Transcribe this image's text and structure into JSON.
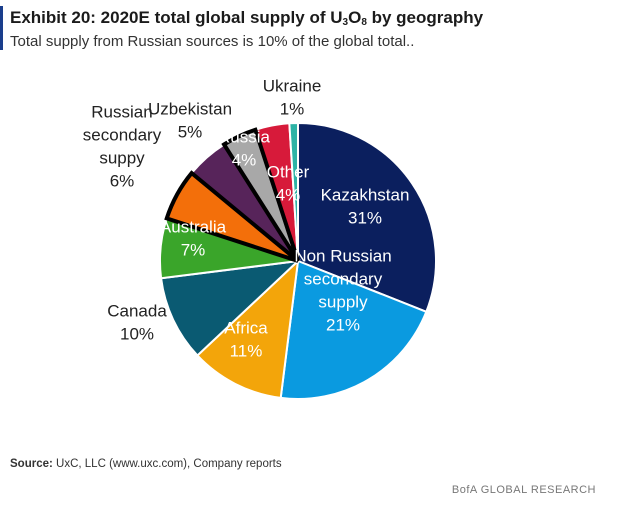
{
  "header": {
    "title_main": "Exhibit 20: 2020E total global supply of U",
    "title_sub1": "3",
    "title_mid": "O",
    "title_sub2": "8",
    "title_end": " by geography",
    "subtitle": "Total supply from Russian sources is 10% of the global total.."
  },
  "footer": {
    "source_label": "Source:",
    "source_text": " UxC, LLC (www.uxc.com), Company reports",
    "brand": "BofA GLOBAL RESEARCH"
  },
  "colors": {
    "kazakhstan": "#0b1f5e",
    "non_russian_secondary": "#0a9ae0",
    "africa": "#f3a50a",
    "canada": "#0a5a72",
    "australia": "#3aa52a",
    "russian_secondary": "#f36f0a",
    "uzbekistan": "#57245a",
    "russia": "#a8a8a8",
    "other": "#d71a3a",
    "ukraine": "#2db3a6"
  },
  "chart_data": {
    "type": "pie",
    "title": "Exhibit 20: 2020E total global supply of U3O8 by geography",
    "slices": [
      {
        "label": "Kazakhstan",
        "value_label": "31%",
        "value": 31
      },
      {
        "label": "Non Russian secondary supply",
        "value_label": "21%",
        "value": 21
      },
      {
        "label": "Africa",
        "value_label": "11%",
        "value": 11
      },
      {
        "label": "Canada",
        "value_label": "10%",
        "value": 10
      },
      {
        "label": "Australia",
        "value_label": "7%",
        "value": 7
      },
      {
        "label": "Russian secondary suppy",
        "value_label": "6%",
        "value": 6
      },
      {
        "label": "Uzbekistan",
        "value_label": "5%",
        "value": 5
      },
      {
        "label": "Russia",
        "value_label": "4%",
        "value": 4
      },
      {
        "label": "Other",
        "value_label": "4%",
        "value": 4
      },
      {
        "label": "Ukraine",
        "value_label": "1%",
        "value": 1
      }
    ],
    "highlighted": [
      "Russian secondary suppy",
      "Russia"
    ]
  }
}
